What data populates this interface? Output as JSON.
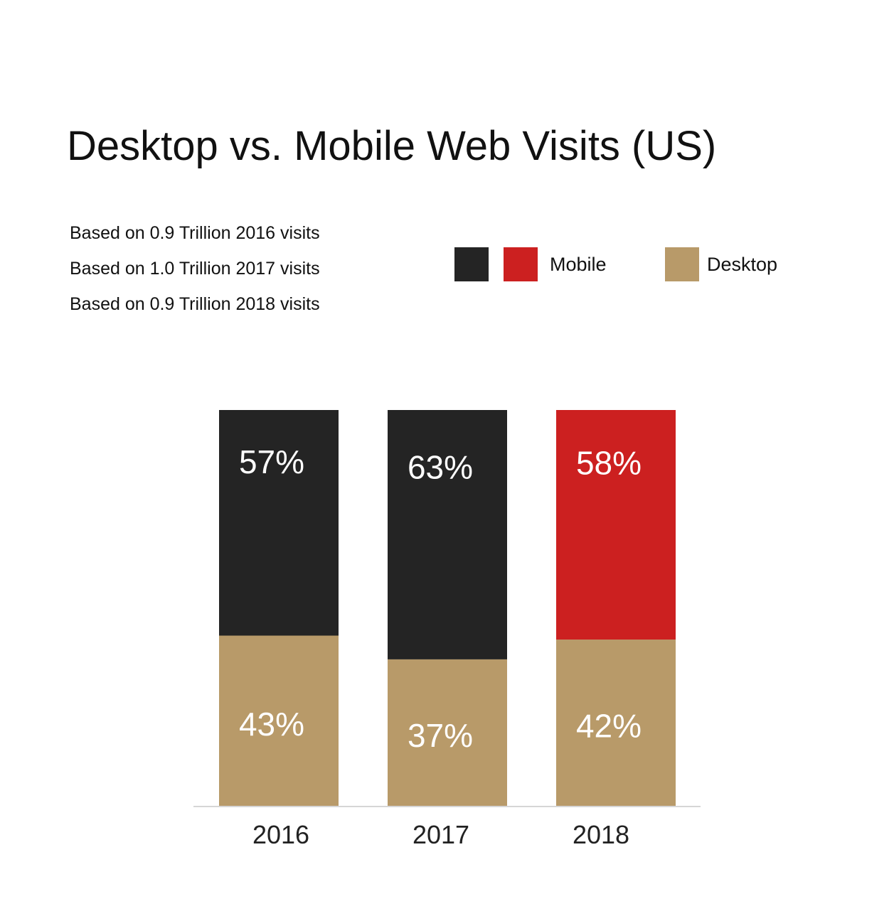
{
  "title": "Desktop vs. Mobile Web Visits (US)",
  "notes": [
    "Based on 0.9 Trillion 2016 visits",
    "Based on 1.0 Trillion 2017 visits",
    "Based on 0.9 Trillion 2018 visits"
  ],
  "legend": {
    "mobile_label": "Mobile",
    "desktop_label": "Desktop"
  },
  "colors": {
    "mobile_dark": "#242424",
    "mobile_red": "#cc2020",
    "desktop": "#b89a69",
    "axis": "#d6d6d6"
  },
  "chart_data": {
    "type": "bar",
    "stacked": true,
    "categories": [
      "2016",
      "2017",
      "2018"
    ],
    "series": [
      {
        "name": "Desktop",
        "values": [
          43,
          37,
          42
        ],
        "labels": [
          "43%",
          "37%",
          "42%"
        ]
      },
      {
        "name": "Mobile",
        "values": [
          57,
          63,
          58
        ],
        "labels": [
          "57%",
          "63%",
          "58%"
        ]
      }
    ],
    "ylim": [
      0,
      100
    ],
    "xlabel": "",
    "ylabel": "",
    "grid": false,
    "legend_position": "top-right"
  }
}
